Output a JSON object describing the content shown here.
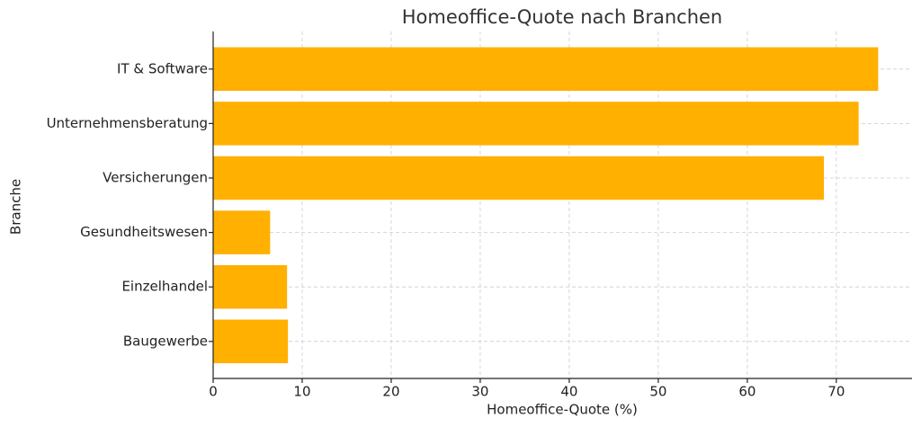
{
  "chart_data": {
    "type": "bar",
    "orientation": "horizontal",
    "title": "Homeoffice-Quote nach Branchen",
    "x_label": "Homeoffice-Quote (%)",
    "y_label": "Branche",
    "categories": [
      "IT & Software",
      "Unternehmensberatung",
      "Versicherungen",
      "Gesundheitswesen",
      "Einzelhandel",
      "Baugewerbe"
    ],
    "values": [
      74.7,
      72.5,
      68.6,
      6.4,
      8.3,
      8.4
    ],
    "color": "#ffb000",
    "xlim": [
      0,
      78.5
    ],
    "xticks": [
      0,
      10,
      20,
      30,
      40,
      50,
      60,
      70
    ],
    "grid": true
  }
}
